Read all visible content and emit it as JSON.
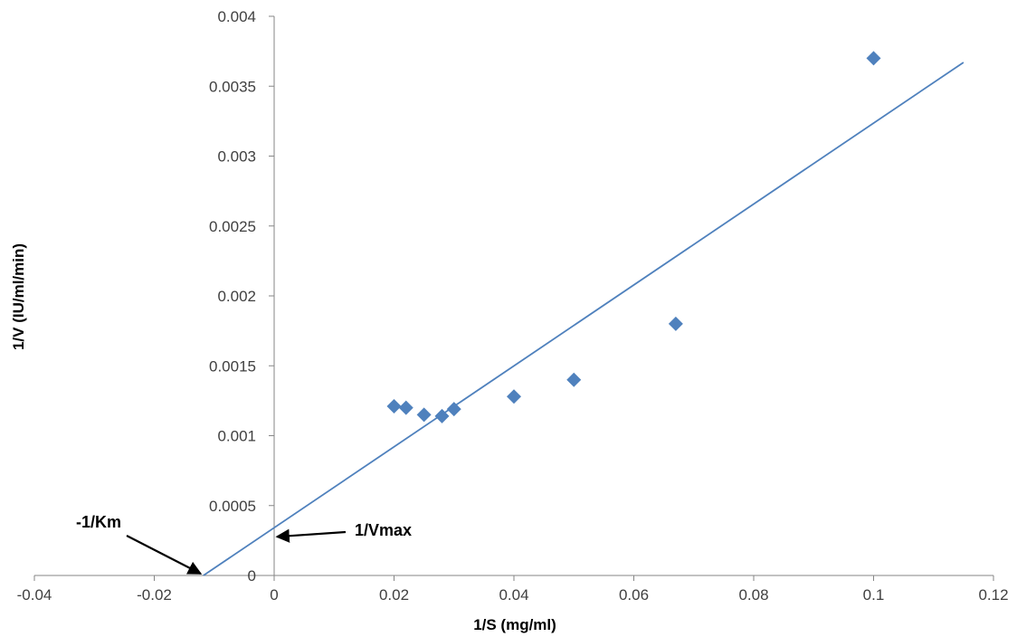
{
  "chart_data": {
    "type": "scatter",
    "title": "",
    "xlabel": "1/S  (mg/ml)",
    "ylabel": "1/V (IU/ml/min)",
    "xlim": [
      -0.04,
      0.12
    ],
    "ylim": [
      0,
      0.004
    ],
    "x_ticks": [
      -0.04,
      -0.02,
      0,
      0.02,
      0.04,
      0.06,
      0.08,
      0.1,
      0.12
    ],
    "x_tick_labels": [
      "-0.04",
      "-0.02",
      "0",
      "0.02",
      "0.04",
      "0.06",
      "0.08",
      "0.1",
      "0.12"
    ],
    "y_ticks": [
      0,
      0.0005,
      0.001,
      0.0015,
      0.002,
      0.0025,
      0.003,
      0.0035,
      0.004
    ],
    "y_tick_labels": [
      "0",
      "0.0005",
      "0.001",
      "0.0015",
      "0.002",
      "0.0025",
      "0.003",
      "0.0035",
      "0.004"
    ],
    "grid": false,
    "legend": "none",
    "marker": "diamond",
    "series": [
      {
        "x": [
          0.02,
          0.022,
          0.025,
          0.028,
          0.03,
          0.04,
          0.05,
          0.067,
          0.1
        ],
        "y": [
          0.00121,
          0.0012,
          0.00115,
          0.00114,
          0.00119,
          0.00128,
          0.0014,
          0.0018,
          0.0037
        ],
        "color": "#4f81bd"
      }
    ],
    "trendline": {
      "x": [
        -0.0118,
        0.115
      ],
      "y": [
        0,
        0.00367
      ],
      "color": "#4f81bd"
    },
    "annotations": [
      {
        "text": "-1/Km",
        "points_to": [
          -0.0118,
          0
        ]
      },
      {
        "text": "1/Vmax",
        "points_to": [
          0,
          0.00029
        ]
      }
    ]
  }
}
